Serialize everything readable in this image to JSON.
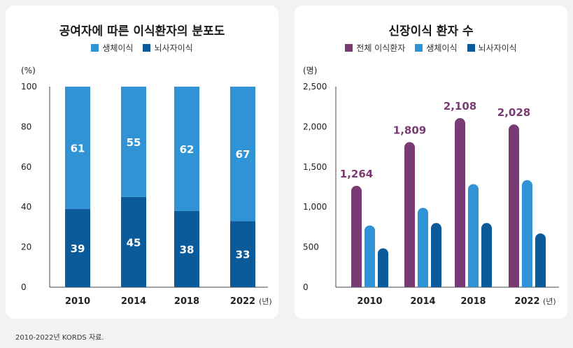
{
  "source_note": "2010-2022년 KORDS 자료.",
  "colors": {
    "living": "#2f93d5",
    "brain": "#0b5a9a",
    "total": "#7a3b75",
    "total_label": "#7a3b75"
  },
  "chart_data": [
    {
      "type": "bar",
      "stacked": true,
      "title": "공여자에 따른 이식환자의 분포도",
      "y_unit": "(%)",
      "x_unit": "(년)",
      "ylim": [
        0,
        100
      ],
      "yticks": [
        0,
        20,
        40,
        60,
        80,
        100
      ],
      "categories": [
        "2010",
        "2014",
        "2018",
        "2022"
      ],
      "series": [
        {
          "name": "생체이식",
          "values": [
            61,
            55,
            62,
            67
          ]
        },
        {
          "name": "뇌사자이식",
          "values": [
            39,
            45,
            38,
            33
          ]
        }
      ],
      "legend_position": "top-center",
      "grid": false
    },
    {
      "type": "bar",
      "stacked": false,
      "title": "신장이식 환자 수",
      "y_unit": "(명)",
      "x_unit": "(년)",
      "ylim": [
        0,
        2500
      ],
      "yticks": [
        0,
        500,
        1000,
        1500,
        2000,
        2500
      ],
      "ytick_labels": [
        "0",
        "500",
        "1,000",
        "1,500",
        "2,000",
        "2,500"
      ],
      "categories": [
        "2010",
        "2014",
        "2018",
        "2022"
      ],
      "series": [
        {
          "name": "전체 이식환자",
          "values": [
            1264,
            1809,
            2108,
            2028
          ],
          "labels": [
            "1,264",
            "1,809",
            "2,108",
            "2,028"
          ]
        },
        {
          "name": "생체이식",
          "values": [
            770,
            990,
            1285,
            1335
          ]
        },
        {
          "name": "뇌사자이식",
          "values": [
            485,
            800,
            800,
            670
          ]
        }
      ],
      "legend_position": "top-center",
      "grid": false
    }
  ]
}
